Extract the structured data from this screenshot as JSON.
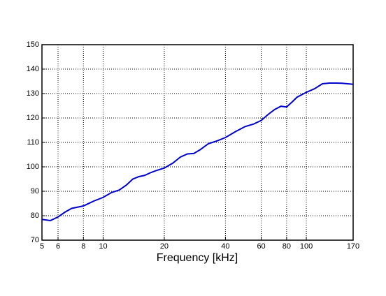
{
  "chart_data": {
    "type": "line",
    "xlabel": "Frequency [kHz]",
    "xscale": "log",
    "grid": true,
    "xlim": [
      5,
      170
    ],
    "xticks": [
      5,
      6,
      8,
      10,
      20,
      40,
      60,
      80,
      100,
      170
    ],
    "ylim": [
      70,
      150
    ],
    "yticks": [
      70,
      80,
      90,
      100,
      110,
      120,
      130,
      140,
      150
    ],
    "series": [
      {
        "color": "#0000cc",
        "x": [
          5,
          5.5,
          6,
          6.5,
          7,
          8,
          9,
          10,
          11,
          12,
          13,
          14,
          15,
          16,
          17,
          18,
          20,
          22,
          24,
          26,
          28,
          30,
          33,
          36,
          40,
          45,
          50,
          55,
          60,
          65,
          70,
          75,
          80,
          85,
          90,
          100,
          110,
          120,
          130,
          140,
          150,
          160,
          170
        ],
        "values": [
          78.5,
          78,
          79.5,
          81.5,
          83,
          84,
          86,
          87.5,
          89.5,
          90.5,
          92.5,
          95,
          96,
          96.5,
          97.5,
          98.3,
          99.5,
          101.5,
          104,
          105.3,
          105.5,
          107,
          109.5,
          110.5,
          112,
          114.5,
          116.5,
          117.5,
          119,
          121.5,
          123.5,
          124.8,
          124.5,
          126.5,
          128.5,
          130.5,
          132,
          134,
          134.3,
          134.3,
          134.2,
          134,
          133.8
        ]
      }
    ]
  }
}
